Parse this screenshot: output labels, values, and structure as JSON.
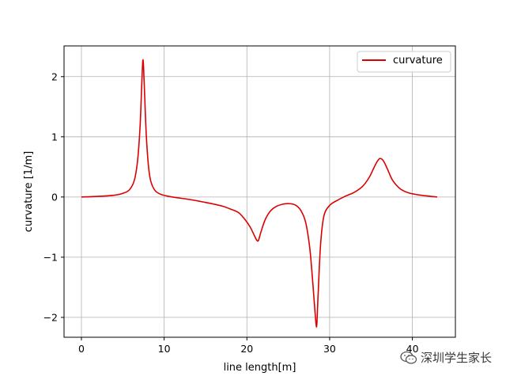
{
  "chart_data": {
    "type": "line",
    "xlabel": "line length[m]",
    "ylabel": "curvature [1/m]",
    "xlim": [
      -2.1,
      45.2
    ],
    "ylim": [
      -2.33,
      2.51
    ],
    "xticks": [
      0,
      10,
      20,
      30,
      40
    ],
    "yticks": [
      -2,
      -1,
      0,
      1,
      2
    ],
    "xtick_labels": [
      "0",
      "10",
      "20",
      "30",
      "40"
    ],
    "ytick_labels": [
      "−2",
      "−1",
      "0",
      "1",
      "2"
    ],
    "grid": true,
    "legend": {
      "position": "top-right",
      "entries": [
        "curvature"
      ]
    },
    "series": [
      {
        "name": "curvature",
        "color": "#dd0000",
        "x": [
          0,
          2,
          4,
          5,
          5.8,
          6.4,
          6.8,
          7.1,
          7.3,
          7.45,
          7.6,
          7.85,
          8.2,
          8.7,
          9.5,
          11,
          13,
          15,
          17,
          18,
          19,
          19.8,
          20.4,
          20.9,
          21.2,
          21.4,
          21.7,
          22.2,
          22.8,
          23.5,
          24.3,
          25,
          25.8,
          26.5,
          27.1,
          27.6,
          27.95,
          28.2,
          28.35,
          28.45,
          28.6,
          28.9,
          29.3,
          30,
          31,
          32,
          33,
          34,
          34.8,
          35.4,
          35.8,
          36.1,
          36.5,
          37,
          37.6,
          38.5,
          39.5,
          41,
          43
        ],
        "y": [
          0,
          0.01,
          0.03,
          0.06,
          0.12,
          0.28,
          0.62,
          1.2,
          1.9,
          2.28,
          1.85,
          1.0,
          0.4,
          0.15,
          0.05,
          0.0,
          -0.04,
          -0.09,
          -0.15,
          -0.2,
          -0.26,
          -0.38,
          -0.5,
          -0.64,
          -0.72,
          -0.72,
          -0.58,
          -0.38,
          -0.24,
          -0.16,
          -0.12,
          -0.11,
          -0.13,
          -0.22,
          -0.42,
          -0.85,
          -1.4,
          -1.85,
          -2.1,
          -2.12,
          -1.65,
          -0.8,
          -0.32,
          -0.14,
          -0.05,
          0.02,
          0.08,
          0.18,
          0.33,
          0.5,
          0.6,
          0.64,
          0.6,
          0.46,
          0.28,
          0.14,
          0.07,
          0.03,
          0.0
        ]
      }
    ]
  },
  "watermark": {
    "text": "深圳学生家长",
    "icon": "wechat-icon"
  }
}
